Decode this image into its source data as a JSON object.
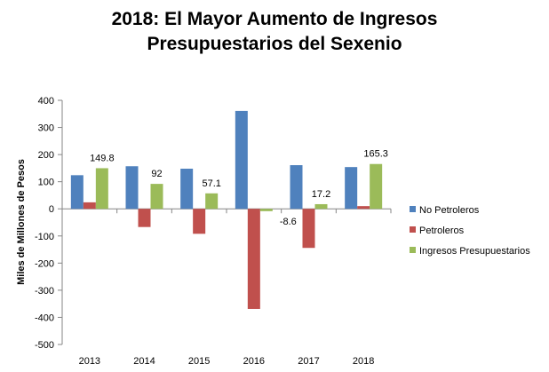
{
  "chart_data": {
    "type": "bar",
    "title": [
      "2018:  El  Mayor Aumento de Ingresos",
      "Presupuestarios del Sexenio"
    ],
    "ylabel": "Miles de Millones de Pesos",
    "xlabel": "",
    "ylim": [
      -500,
      400
    ],
    "yticks": [
      400,
      300,
      200,
      100,
      0,
      -100,
      -200,
      -300,
      -400,
      -500
    ],
    "ytick_labels": [
      "400",
      "300",
      "200",
      "100",
      "0",
      "-100",
      "-200",
      "-300",
      "-400",
      "-500"
    ],
    "categories": [
      "2013",
      "2014",
      "2015",
      "2016",
      "2017",
      "2018"
    ],
    "grid": false,
    "legend_position": "right",
    "series": [
      {
        "name": "No Petroleros",
        "color": "#4f81bd",
        "values": [
          124,
          157,
          148,
          361,
          161,
          154
        ]
      },
      {
        "name": "Petroleros",
        "color": "#c0504d",
        "values": [
          24,
          -67,
          -92,
          -369,
          -144,
          10
        ]
      },
      {
        "name": "Ingresos Presupuestarios",
        "color": "#9bbb59",
        "values": [
          149.8,
          92,
          57.1,
          -8.6,
          17.2,
          165.3
        ]
      }
    ],
    "data_labels": {
      "series": "Ingresos Presupuestarios",
      "text": [
        "149.8",
        "92",
        "57.1",
        "-8.6",
        "17.2",
        "165.3"
      ]
    }
  }
}
